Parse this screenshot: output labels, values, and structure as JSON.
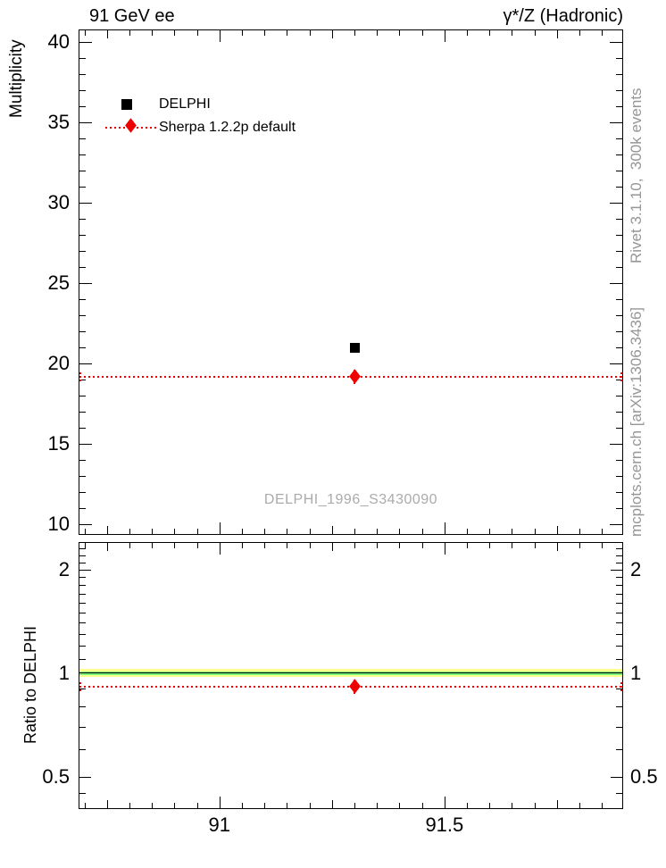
{
  "header": {
    "left_title": "91 GeV ee",
    "right_title": "γ*/Z (Hadronic)"
  },
  "side_notes": {
    "top_right": "Rivet 3.1.10,  300k events",
    "bottom_right": "mcplots.cern.ch [arXiv:1306.3436]"
  },
  "watermark": "DELPHI_1996_S3430090",
  "legend": [
    {
      "label": "DELPHI",
      "marker": "black-filled-square"
    },
    {
      "label": "Sherpa 1.2.2p default",
      "marker": "red-diamond-on-dotted-line"
    }
  ],
  "colors": {
    "data": "#000000",
    "mc_red": "#ee0000",
    "band_yellow": "#ffff8c",
    "band_green": "#7cf87c",
    "note_gray": "#969696",
    "watermark_gray": "#ababab"
  },
  "chart_data": {
    "type": "scatter",
    "title": "91 GeV ee",
    "right_title": "γ*/Z (Hadronic)",
    "xlabel": "",
    "xlim": [
      90.687,
      91.897
    ],
    "x_ticks_labeled": [
      {
        "v": 91.0,
        "label": "91"
      },
      {
        "v": 91.5,
        "label": "91.5"
      }
    ],
    "x_ticks_medium": [
      90.75,
      91.25,
      91.75
    ],
    "x_ticks_minor": [
      90.7,
      90.8,
      90.85,
      90.9,
      90.95,
      91.05,
      91.1,
      91.15,
      91.2,
      91.3,
      91.35,
      91.4,
      91.45,
      91.55,
      91.6,
      91.65,
      91.7,
      91.8,
      91.85
    ],
    "main_panel": {
      "ylabel": "Multiplicity",
      "yscale": "linear",
      "ylim": [
        9.33,
        40.78
      ],
      "y_ticks_labeled": [
        {
          "v": 10,
          "label": "10"
        },
        {
          "v": 15,
          "label": "15"
        },
        {
          "v": 20,
          "label": "20"
        },
        {
          "v": 25,
          "label": "25"
        },
        {
          "v": 30,
          "label": "30"
        },
        {
          "v": 35,
          "label": "35"
        },
        {
          "v": 40,
          "label": "40"
        }
      ],
      "y_ticks_minor": [
        11,
        12,
        13,
        14,
        16,
        17,
        18,
        19,
        21,
        22,
        23,
        24,
        26,
        27,
        28,
        29,
        31,
        32,
        33,
        34,
        36,
        37,
        38,
        39
      ],
      "series": [
        {
          "name": "DELPHI",
          "marker": "square",
          "color": "#000000",
          "points": [
            {
              "x": 91.3,
              "y": 20.95
            }
          ]
        },
        {
          "name": "Sherpa 1.2.2p default",
          "marker": "diamond",
          "color": "#ee0000",
          "hline": 19.17,
          "points": [
            {
              "x": 91.3,
              "y": 19.17
            }
          ]
        }
      ]
    },
    "ratio_panel": {
      "ylabel": "Ratio to DELPHI",
      "yscale": "log",
      "ylim": [
        0.403,
        2.402
      ],
      "y_ticks_labeled": [
        {
          "v": 0.5,
          "label": "0.5"
        },
        {
          "v": 1,
          "label": "1"
        },
        {
          "v": 2,
          "label": "2"
        }
      ],
      "y_ticks_minor": [
        0.45,
        0.6,
        0.7,
        0.8,
        0.9,
        1.1,
        1.2,
        1.3,
        1.4,
        1.5,
        1.6,
        1.7,
        1.8,
        1.9,
        2.1,
        2.2,
        2.3,
        2.4
      ],
      "reference_line": 1.0,
      "uncertainty_bands": [
        {
          "color_key": "band_yellow",
          "lo": 0.973,
          "hi": 1.027
        },
        {
          "color_key": "band_green",
          "lo": 0.989,
          "hi": 1.011
        }
      ],
      "mc_ratio_hline": 0.915,
      "points": [
        {
          "x": 91.3,
          "y": 0.915
        }
      ]
    }
  }
}
